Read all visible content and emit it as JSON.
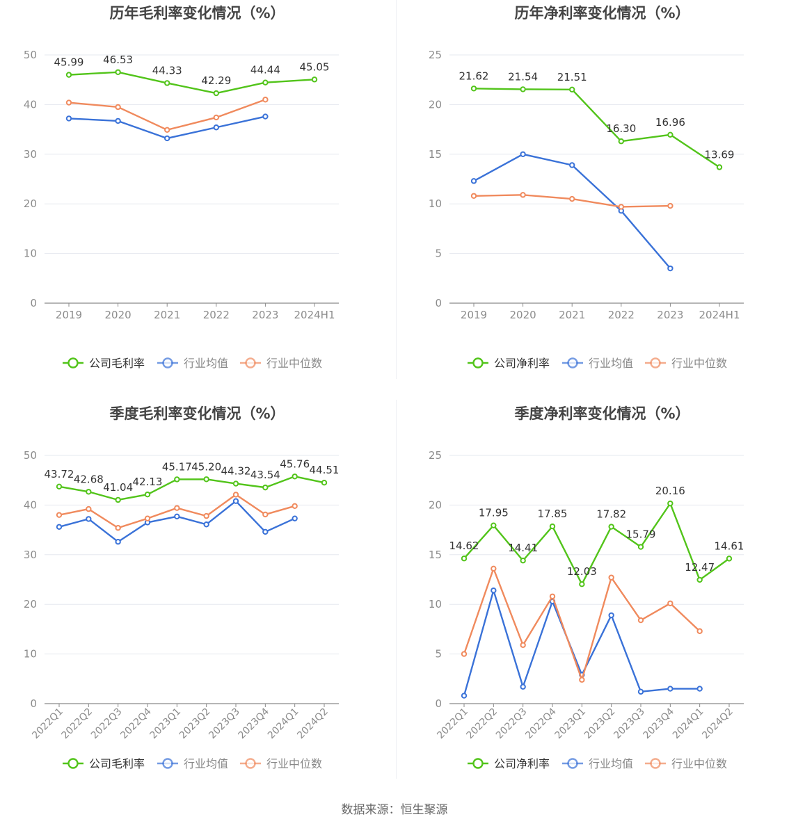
{
  "source_label": "数据来源：恒生聚源",
  "colors": {
    "company": "#52c41a",
    "avg": "#3a72d8",
    "median": "#f08a5d",
    "grid": "#e6e8ef",
    "axis": "#8c8c8c",
    "text": "#666666",
    "title": "#444444"
  },
  "chart_data": [
    {
      "type": "line",
      "title": "历年毛利率变化情况（%）",
      "categories": [
        "2019",
        "2020",
        "2021",
        "2022",
        "2023",
        "2024H1"
      ],
      "ylim": [
        0,
        50
      ],
      "yticks": [
        0,
        10,
        20,
        30,
        40,
        50
      ],
      "grid": true,
      "legend_position": "bottom",
      "series": [
        {
          "name": "公司毛利率",
          "values": [
            45.99,
            46.53,
            44.33,
            42.29,
            44.44,
            45.05
          ],
          "labels": [
            "45.99",
            "46.53",
            "44.33",
            "42.29",
            "44.44",
            "45.05"
          ]
        },
        {
          "name": "行业均值",
          "values": [
            37.2,
            36.7,
            33.2,
            35.4,
            37.6,
            null
          ]
        },
        {
          "name": "行业中位数",
          "values": [
            40.4,
            39.5,
            34.9,
            37.4,
            41.0,
            null
          ]
        }
      ]
    },
    {
      "type": "line",
      "title": "历年净利率变化情况（%）",
      "categories": [
        "2019",
        "2020",
        "2021",
        "2022",
        "2023",
        "2024H1"
      ],
      "ylim": [
        0,
        25
      ],
      "yticks": [
        0,
        5,
        10,
        15,
        20,
        25
      ],
      "grid": true,
      "legend_position": "bottom",
      "series": [
        {
          "name": "公司净利率",
          "values": [
            21.62,
            21.54,
            21.51,
            16.3,
            16.96,
            13.69
          ],
          "labels": [
            "21.62",
            "21.54",
            "21.51",
            "16.30",
            "16.96",
            "13.69"
          ]
        },
        {
          "name": "行业均值",
          "values": [
            12.3,
            15.0,
            13.9,
            9.3,
            3.5,
            null
          ]
        },
        {
          "name": "行业中位数",
          "values": [
            10.8,
            10.9,
            10.5,
            9.7,
            9.8,
            null
          ]
        }
      ]
    },
    {
      "type": "line",
      "title": "季度毛利率变化情况（%）",
      "categories": [
        "2022Q1",
        "2022Q2",
        "2022Q3",
        "2022Q4",
        "2023Q1",
        "2023Q2",
        "2023Q3",
        "2023Q4",
        "2024Q1",
        "2024Q2"
      ],
      "ylim": [
        0,
        50
      ],
      "yticks": [
        0,
        10,
        20,
        30,
        40,
        50
      ],
      "grid": true,
      "legend_position": "bottom",
      "series": [
        {
          "name": "公司毛利率",
          "values": [
            43.72,
            42.68,
            41.04,
            42.13,
            45.17,
            45.2,
            44.32,
            43.54,
            45.76,
            44.51
          ],
          "labels": [
            "43.72",
            "42.68",
            "41.04",
            "42.13",
            "45.17",
            "45.20",
            "44.32",
            "43.54",
            "45.76",
            "44.51"
          ]
        },
        {
          "name": "行业均值",
          "values": [
            35.6,
            37.2,
            32.6,
            36.5,
            37.7,
            36.1,
            40.8,
            34.6,
            37.3,
            null
          ]
        },
        {
          "name": "行业中位数",
          "values": [
            38.0,
            39.2,
            35.4,
            37.3,
            39.4,
            37.8,
            42.1,
            38.1,
            39.8,
            null
          ]
        }
      ]
    },
    {
      "type": "line",
      "title": "季度净利率变化情况（%）",
      "categories": [
        "2022Q1",
        "2022Q2",
        "2022Q3",
        "2022Q4",
        "2023Q1",
        "2023Q2",
        "2023Q3",
        "2023Q4",
        "2024Q1",
        "2024Q2"
      ],
      "ylim": [
        0,
        25
      ],
      "yticks": [
        0,
        5,
        10,
        15,
        20,
        25
      ],
      "grid": true,
      "legend_position": "bottom",
      "series": [
        {
          "name": "公司净利率",
          "values": [
            14.62,
            17.95,
            14.41,
            17.85,
            12.03,
            17.82,
            15.79,
            20.16,
            12.47,
            14.61
          ],
          "labels": [
            "14.62",
            "17.95",
            "14.41",
            "17.85",
            "12.03",
            "17.82",
            "15.79",
            "20.16",
            "12.47",
            "14.61"
          ]
        },
        {
          "name": "行业均值",
          "values": [
            0.8,
            11.4,
            1.7,
            10.3,
            2.9,
            8.9,
            1.2,
            1.5,
            1.5,
            null
          ]
        },
        {
          "name": "行业中位数",
          "values": [
            5.0,
            13.6,
            5.9,
            10.8,
            2.4,
            12.7,
            8.4,
            10.1,
            7.3,
            null
          ]
        }
      ]
    }
  ]
}
